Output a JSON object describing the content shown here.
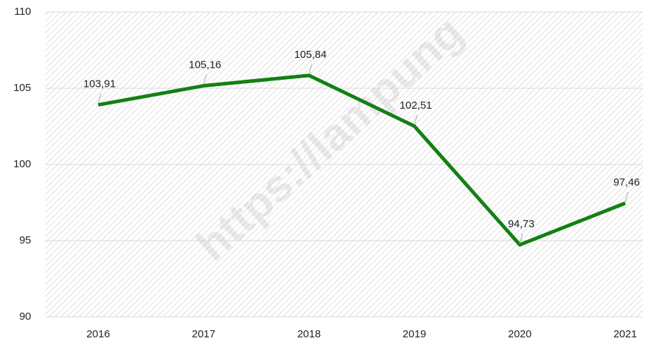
{
  "chart_data": {
    "type": "line",
    "categories": [
      "2016",
      "2017",
      "2018",
      "2019",
      "2020",
      "2021"
    ],
    "series": [
      {
        "color": "#138013",
        "values": [
          103.91,
          105.16,
          105.84,
          102.51,
          94.73,
          97.46
        ],
        "value_labels": [
          "103,91",
          "105,16",
          "105,84",
          "102,51",
          "94,73",
          "97,46"
        ]
      }
    ],
    "ylim": [
      90,
      110
    ],
    "yticks": [
      90,
      95,
      100,
      105,
      110
    ],
    "grid": true,
    "watermark": "https://lampung"
  }
}
